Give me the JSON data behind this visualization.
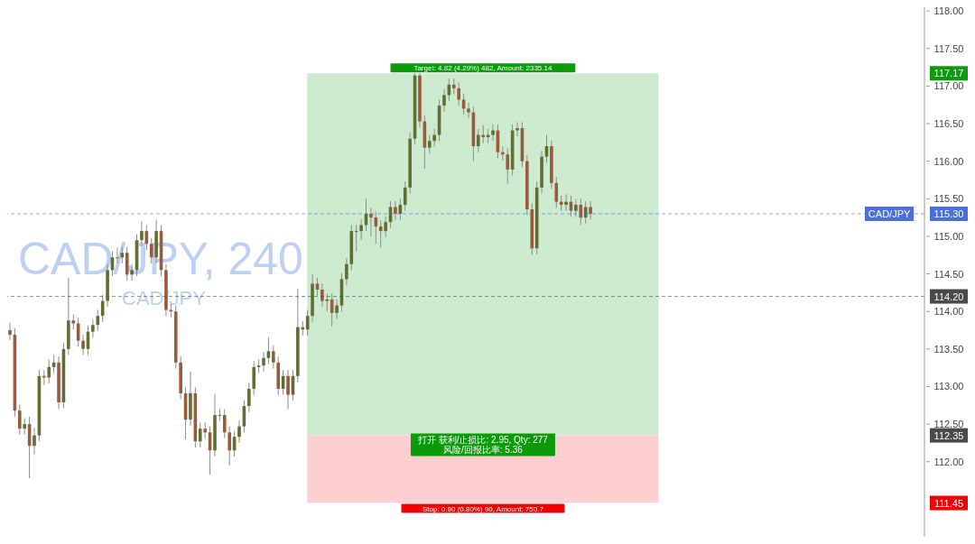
{
  "chart_data": {
    "type": "candlestick",
    "title": "CAD/JPY, 240",
    "subtitle": "CAD/JPY",
    "categories": [
      null,
      null,
      null,
      null,
      null,
      null,
      null,
      null,
      null,
      null,
      null,
      null,
      null,
      null,
      null,
      null,
      null,
      null,
      null,
      null,
      null,
      null,
      null,
      null,
      null,
      null,
      null,
      null,
      null,
      null,
      null,
      null,
      null,
      null,
      null,
      null,
      null,
      null,
      null,
      null,
      null,
      null,
      null,
      null,
      null,
      null,
      null,
      null,
      null,
      null,
      null,
      null,
      null,
      null,
      null,
      null,
      null,
      null,
      null,
      null,
      null,
      null,
      null,
      null,
      null,
      null,
      null,
      null,
      null,
      null,
      null,
      null,
      null,
      null,
      null,
      null,
      null,
      null,
      null,
      null,
      null,
      null,
      null,
      null,
      null,
      null,
      null,
      null,
      null,
      null,
      null,
      null,
      null,
      null,
      null,
      null,
      null,
      null,
      null,
      null,
      null,
      null,
      null,
      null,
      null,
      null,
      null,
      null,
      null,
      null,
      null,
      null,
      null,
      null,
      null,
      null,
      null,
      null,
      null,
      null,
      null,
      null,
      null,
      null,
      null,
      null,
      null,
      null,
      null,
      null,
      null,
      null,
      null,
      null,
      null,
      null,
      null,
      null,
      null,
      null,
      null,
      null,
      null,
      null,
      null,
      null,
      null,
      null,
      null,
      null,
      null,
      null,
      null,
      null,
      null,
      null,
      null,
      null,
      null,
      null,
      null,
      null,
      null,
      null,
      null,
      null,
      null,
      null,
      null,
      null,
      null,
      null,
      null,
      null,
      null,
      null,
      null,
      null,
      null,
      null,
      null,
      null,
      null,
      null,
      null,
      null,
      null,
      null
    ],
    "ohlc": [
      [
        113.75,
        113.85,
        113.62,
        113.69
      ],
      [
        113.69,
        113.78,
        112.6,
        112.68
      ],
      [
        112.68,
        112.76,
        112.36,
        112.44
      ],
      [
        112.44,
        112.58,
        112.36,
        112.5
      ],
      [
        112.5,
        112.6,
        111.78,
        112.21
      ],
      [
        112.21,
        112.45,
        112.1,
        112.35
      ],
      [
        112.35,
        113.22,
        112.27,
        113.14
      ],
      [
        113.14,
        113.22,
        113.02,
        113.12
      ],
      [
        113.12,
        113.36,
        113.04,
        113.26
      ],
      [
        113.26,
        113.42,
        113.18,
        113.32
      ],
      [
        113.32,
        113.4,
        112.7,
        112.79
      ],
      [
        112.79,
        113.58,
        112.71,
        113.5
      ],
      [
        113.5,
        114.45,
        113.42,
        113.88
      ],
      [
        113.88,
        113.96,
        113.76,
        113.84
      ],
      [
        113.84,
        113.92,
        113.53,
        113.61
      ],
      [
        113.61,
        113.69,
        113.42,
        113.5
      ],
      [
        113.5,
        113.81,
        113.42,
        113.73
      ],
      [
        113.73,
        113.9,
        113.65,
        113.82
      ],
      [
        113.82,
        114.02,
        113.74,
        113.94
      ],
      [
        113.94,
        114.22,
        113.86,
        114.14
      ],
      [
        114.14,
        114.63,
        114.06,
        114.55
      ],
      [
        114.55,
        114.8,
        114.47,
        114.72
      ],
      [
        114.72,
        114.85,
        114.64,
        114.72
      ],
      [
        114.72,
        114.86,
        114.64,
        114.78
      ],
      [
        114.78,
        114.86,
        114.41,
        114.49
      ],
      [
        114.49,
        114.63,
        114.41,
        114.55
      ],
      [
        114.55,
        115.03,
        114.47,
        114.95
      ],
      [
        114.95,
        115.2,
        114.87,
        115.07
      ],
      [
        115.07,
        115.15,
        114.82,
        114.9
      ],
      [
        114.9,
        114.98,
        114.64,
        114.72
      ],
      [
        114.72,
        115.22,
        114.64,
        115.07
      ],
      [
        115.07,
        115.15,
        114.47,
        114.55
      ],
      [
        114.55,
        114.63,
        113.94,
        114.02
      ],
      [
        114.02,
        114.1,
        113.92,
        114.0
      ],
      [
        114.0,
        114.08,
        113.24,
        113.32
      ],
      [
        113.32,
        113.4,
        112.83,
        112.91
      ],
      [
        112.91,
        112.99,
        112.3,
        112.56
      ],
      [
        112.56,
        113.2,
        112.48,
        112.91
      ],
      [
        112.91,
        112.99,
        112.19,
        112.27
      ],
      [
        112.27,
        112.52,
        112.19,
        112.44
      ],
      [
        112.44,
        112.52,
        112.31,
        112.39
      ],
      [
        112.39,
        112.47,
        111.83,
        112.15
      ],
      [
        112.15,
        112.9,
        112.07,
        112.62
      ],
      [
        112.62,
        112.7,
        112.54,
        112.62
      ],
      [
        112.62,
        112.7,
        112.31,
        112.39
      ],
      [
        112.39,
        112.47,
        111.95,
        112.15
      ],
      [
        112.15,
        112.41,
        112.07,
        112.33
      ],
      [
        112.33,
        112.55,
        112.25,
        112.47
      ],
      [
        112.47,
        112.82,
        112.39,
        112.74
      ],
      [
        112.74,
        113.05,
        112.66,
        112.97
      ],
      [
        112.97,
        113.34,
        112.89,
        113.26
      ],
      [
        113.26,
        113.36,
        113.18,
        113.28
      ],
      [
        113.28,
        113.46,
        113.2,
        113.38
      ],
      [
        113.38,
        113.65,
        113.3,
        113.47
      ],
      [
        113.47,
        113.55,
        113.24,
        113.32
      ],
      [
        113.32,
        113.4,
        112.89,
        112.97
      ],
      [
        112.97,
        113.22,
        112.89,
        113.14
      ],
      [
        113.14,
        113.22,
        112.7,
        112.89
      ],
      [
        112.89,
        113.22,
        112.81,
        113.14
      ],
      [
        113.14,
        114.3,
        113.06,
        113.79
      ],
      [
        113.79,
        113.87,
        113.68,
        113.76
      ],
      [
        113.76,
        114.02,
        113.68,
        113.94
      ],
      [
        113.94,
        114.5,
        113.86,
        114.37
      ],
      [
        114.37,
        114.45,
        114.21,
        114.29
      ],
      [
        114.29,
        114.37,
        114.06,
        114.14
      ],
      [
        114.14,
        114.24,
        114.0,
        114.16
      ],
      [
        114.16,
        114.24,
        113.8,
        113.98
      ],
      [
        113.98,
        114.16,
        113.9,
        114.08
      ],
      [
        114.08,
        114.51,
        114.0,
        114.43
      ],
      [
        114.43,
        114.71,
        114.35,
        114.63
      ],
      [
        114.63,
        115.15,
        114.55,
        115.07
      ],
      [
        115.07,
        115.15,
        114.8,
        115.07
      ],
      [
        115.07,
        115.23,
        114.95,
        115.15
      ],
      [
        115.15,
        115.5,
        115.07,
        115.3
      ],
      [
        115.3,
        115.38,
        115.0,
        115.25
      ],
      [
        115.25,
        115.33,
        114.9,
        115.13
      ],
      [
        115.13,
        115.21,
        114.85,
        115.07
      ],
      [
        115.07,
        115.27,
        114.99,
        115.19
      ],
      [
        115.19,
        115.47,
        115.11,
        115.39
      ],
      [
        115.39,
        115.47,
        115.22,
        115.3
      ],
      [
        115.3,
        115.5,
        115.22,
        115.42
      ],
      [
        115.42,
        115.73,
        115.34,
        115.65
      ],
      [
        115.65,
        116.38,
        115.57,
        116.3
      ],
      [
        116.3,
        117.17,
        116.22,
        117.14
      ],
      [
        117.14,
        117.17,
        116.45,
        116.53
      ],
      [
        116.53,
        116.61,
        115.9,
        116.18
      ],
      [
        116.18,
        116.35,
        116.1,
        116.27
      ],
      [
        116.27,
        116.43,
        116.19,
        116.35
      ],
      [
        116.35,
        116.82,
        116.27,
        116.74
      ],
      [
        116.74,
        116.96,
        116.66,
        116.88
      ],
      [
        116.88,
        117.1,
        116.8,
        117.02
      ],
      [
        117.02,
        117.1,
        116.89,
        116.97
      ],
      [
        116.97,
        117.05,
        116.74,
        116.82
      ],
      [
        116.82,
        116.9,
        116.62,
        116.7
      ],
      [
        116.7,
        116.78,
        116.57,
        116.65
      ],
      [
        116.65,
        116.73,
        116.0,
        116.2
      ],
      [
        116.2,
        116.43,
        116.12,
        116.35
      ],
      [
        116.35,
        116.48,
        116.24,
        116.32
      ],
      [
        116.32,
        116.43,
        116.24,
        116.35
      ],
      [
        116.35,
        116.49,
        116.27,
        116.41
      ],
      [
        116.41,
        116.49,
        116.04,
        116.12
      ],
      [
        116.12,
        116.2,
        116.01,
        116.09
      ],
      [
        116.09,
        116.17,
        115.7,
        115.89
      ],
      [
        115.89,
        116.49,
        115.81,
        116.41
      ],
      [
        116.41,
        116.52,
        116.33,
        116.44
      ],
      [
        116.44,
        116.52,
        115.92,
        116.0
      ],
      [
        116.0,
        116.08,
        115.28,
        115.36
      ],
      [
        115.36,
        115.44,
        114.75,
        114.84
      ],
      [
        114.84,
        115.73,
        114.76,
        115.65
      ],
      [
        115.65,
        116.14,
        115.57,
        116.06
      ],
      [
        116.06,
        116.35,
        115.98,
        116.2
      ],
      [
        116.2,
        116.28,
        115.63,
        115.71
      ],
      [
        115.71,
        115.79,
        115.38,
        115.46
      ],
      [
        115.46,
        115.54,
        115.34,
        115.42
      ],
      [
        115.42,
        115.56,
        115.34,
        115.46
      ],
      [
        115.46,
        115.54,
        115.26,
        115.34
      ],
      [
        115.34,
        115.5,
        115.26,
        115.42
      ],
      [
        115.42,
        115.5,
        115.15,
        115.25
      ],
      [
        115.25,
        115.47,
        115.17,
        115.39
      ],
      [
        115.39,
        115.47,
        115.22,
        115.3
      ],
      null,
      null,
      null,
      null,
      null,
      null,
      null,
      null,
      null,
      null,
      null,
      null,
      null,
      null,
      null,
      null,
      null,
      null,
      null,
      null,
      null,
      null,
      null,
      null,
      null,
      null,
      null,
      null,
      null,
      null,
      null,
      null,
      null,
      null,
      null,
      null,
      null,
      null,
      null,
      null,
      null,
      null,
      null,
      null,
      null,
      null,
      null,
      null,
      null,
      null,
      null,
      null,
      null,
      null,
      null,
      null,
      null,
      null,
      null,
      null,
      null,
      null,
      null,
      null,
      null,
      null,
      null,
      null
    ],
    "ylim": [
      111.0,
      118.05
    ],
    "yticks": [
      {
        "value": 111.45,
        "label": "111.45"
      },
      {
        "value": 112.35,
        "label": "112.35"
      },
      {
        "value": 114.2,
        "label": "114.20"
      },
      {
        "value": 115.3,
        "label": "115.30"
      },
      {
        "value": 117.17,
        "label": "117.17"
      },
      {
        "value": 112,
        "label": "112.00"
      },
      {
        "value": 112.5,
        "label": "112.50"
      },
      {
        "value": 113,
        "label": "113.00"
      },
      {
        "value": 113.5,
        "label": "113.50"
      },
      {
        "value": 114,
        "label": "114.00"
      },
      {
        "value": 114.5,
        "label": "114.50"
      },
      {
        "value": 115,
        "label": "115.00"
      },
      {
        "value": 115.5,
        "label": "115.50"
      },
      {
        "value": 116,
        "label": "116.00"
      },
      {
        "value": 116.5,
        "label": "116.50"
      },
      {
        "value": 117,
        "label": "117.00"
      },
      {
        "value": 117.5,
        "label": "117.50"
      },
      {
        "value": 118,
        "label": "118.00"
      }
    ],
    "tick_labels": "y",
    "grid": false,
    "legend": false,
    "ref_lines": [
      {
        "axis": "y",
        "value": 115.3,
        "label": "CAD/JPY",
        "color": "#4a6fd8",
        "line_style": "dashed"
      },
      {
        "axis": "y",
        "value": 114.2,
        "label": null,
        "color": "#4a4a4a",
        "line_style": "dashed"
      }
    ],
    "bands": [
      {
        "axis": "y",
        "from": 112.35,
        "to": 117.17,
        "label": "Target: 4.82 (4.29%) 482, Amount: 2335.14",
        "color": "#cdebcf"
      },
      {
        "axis": "y",
        "from": 111.45,
        "to": 112.35,
        "label": "Stop: 0.90 (0.80%) 90, Amount: 750.7",
        "color": "#fcd0d0"
      }
    ],
    "annotations": [
      {
        "text": "打开 获利/止损比: 2.95, Qty: 277\n风险/回报比率: 5.36",
        "y": 112.35
      }
    ]
  }
}
